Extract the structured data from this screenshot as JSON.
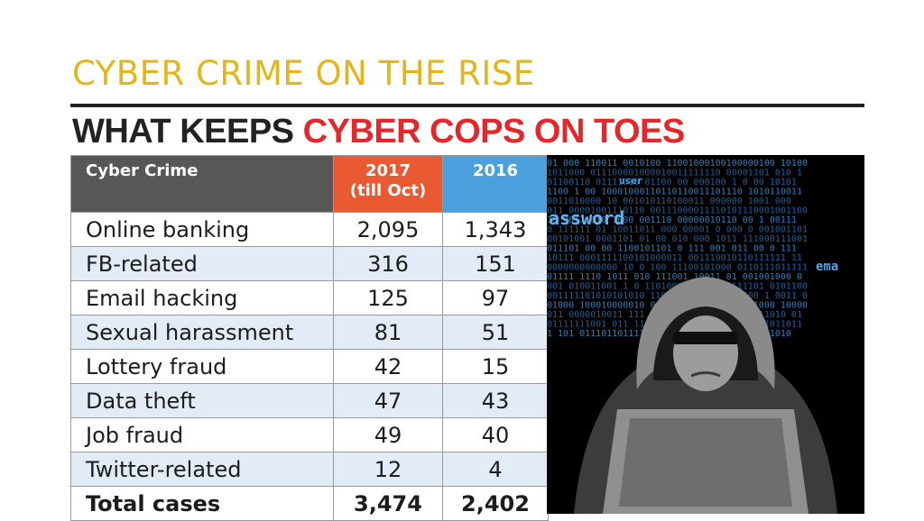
{
  "slide": {
    "title": "CYBER CRIME ON THE RISE"
  },
  "headline": {
    "dark": "WHAT KEEPS ",
    "red": "CYBER COPS ON TOES"
  },
  "table": {
    "headers": {
      "crime": "Cyber Crime",
      "y2017_line1": "2017",
      "y2017_line2": "(till Oct)",
      "y2016": "2016"
    },
    "rows": [
      {
        "crime": "Online banking",
        "y2017": "2,095",
        "y2016": "1,343"
      },
      {
        "crime": "FB-related",
        "y2017": "316",
        "y2016": "151"
      },
      {
        "crime": "Email hacking",
        "y2017": "125",
        "y2016": "97"
      },
      {
        "crime": "Sexual harassment",
        "y2017": "81",
        "y2016": "51"
      },
      {
        "crime": "Lottery fraud",
        "y2017": "42",
        "y2016": "15"
      },
      {
        "crime": "Data theft",
        "y2017": "47",
        "y2016": "43"
      },
      {
        "crime": "Job fraud",
        "y2017": "49",
        "y2016": "40"
      },
      {
        "crime": "Twitter-related",
        "y2017": "12",
        "y2016": "4"
      }
    ],
    "total": {
      "label": "Total cases",
      "y2017": "3,474",
      "y2016": "2,402"
    }
  },
  "image": {
    "icon": "hooded-hacker-illustration",
    "words": [
      "user",
      "assword",
      "ema"
    ]
  },
  "colors": {
    "title": "#e3b51b",
    "headline_red": "#e2282b",
    "header_crime": "#575757",
    "header_2017": "#ea5a32",
    "header_2016": "#4aa0dc",
    "row_alt": "#e3ecf6"
  }
}
